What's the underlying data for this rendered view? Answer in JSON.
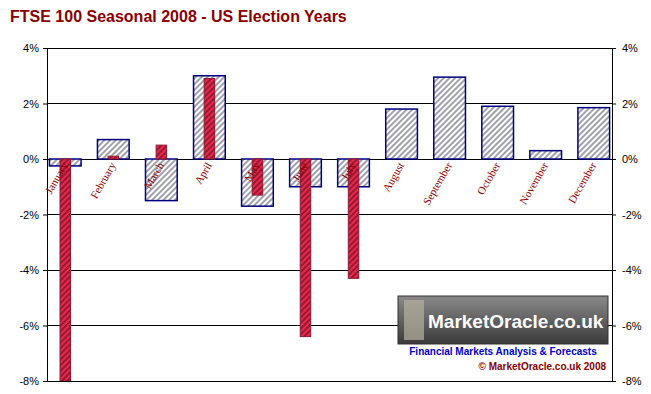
{
  "chart_data": {
    "type": "bar",
    "title": "FTSE 100 Seasonal 2008 - US Election Years",
    "categories": [
      "January",
      "February",
      "March",
      "April",
      "May",
      "June",
      "July",
      "August",
      "September",
      "October",
      "November",
      "December"
    ],
    "series": [
      {
        "color": "#c8c8d8",
        "values": [
          -0.25,
          0.7,
          -1.5,
          3.0,
          -1.7,
          -1.0,
          -1.0,
          1.8,
          2.95,
          1.9,
          0.3,
          1.85
        ]
      },
      {
        "color": "#cc2244",
        "values": [
          -8.0,
          0.1,
          0.5,
          2.9,
          -1.3,
          -6.4,
          -4.3,
          null,
          null,
          null,
          null,
          null
        ]
      }
    ],
    "ylim": [
      -8,
      4
    ],
    "yticks": [
      {
        "value": -8,
        "label": "-8%"
      },
      {
        "value": -6,
        "label": "-6%"
      },
      {
        "value": -4,
        "label": "-4%"
      },
      {
        "value": -2,
        "label": "-2%"
      },
      {
        "value": 0,
        "label": "0%"
      },
      {
        "value": 2,
        "label": "2%"
      },
      {
        "value": 4,
        "label": "4%"
      }
    ],
    "grid": true,
    "annotations": [
      "MarketOracle.co.uk",
      "Financial Markets Analysis & Forecasts",
      "© MarketOracle.co.uk 2008"
    ]
  }
}
